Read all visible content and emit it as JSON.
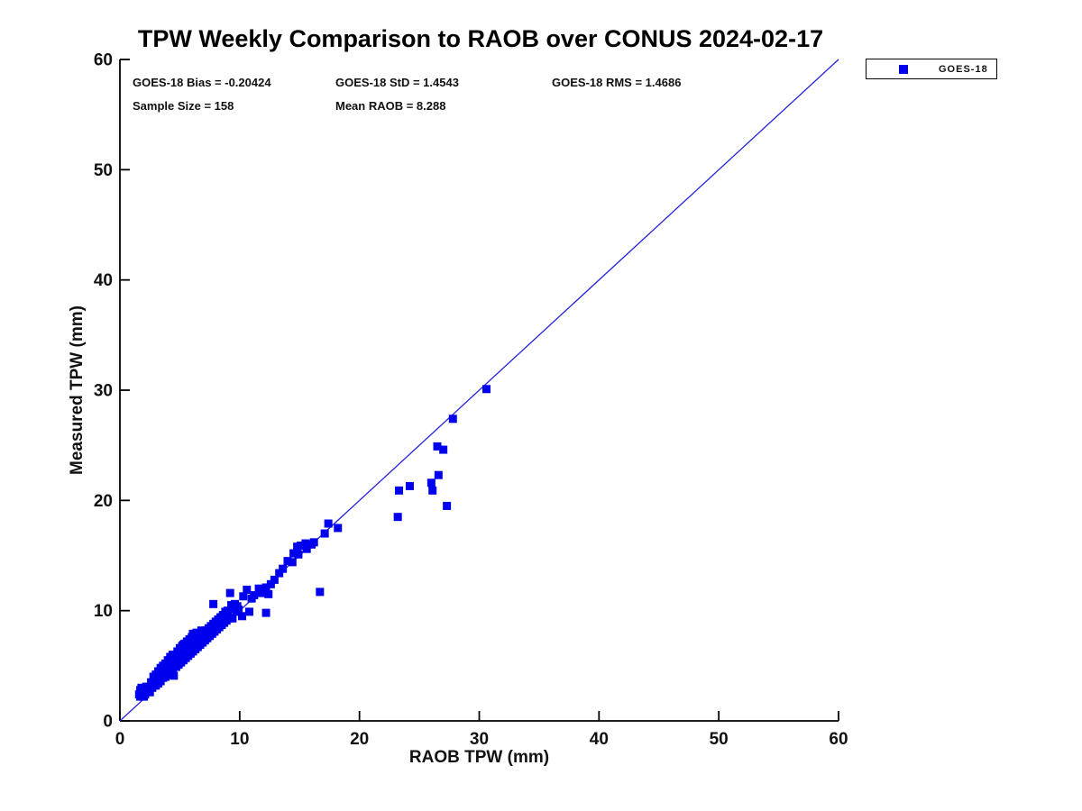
{
  "title": "TPW Weekly Comparison to RAOB over CONUS 2024-02-17",
  "stats": {
    "bias": "GOES-18 Bias = -0.20424",
    "std": "GOES-18 StD = 1.4543",
    "rms": "GOES-18 RMS = 1.4686",
    "sample_size": "Sample Size = 158",
    "mean_raob": "Mean RAOB = 8.288"
  },
  "legend": {
    "position": "top-right-outside",
    "entries": [
      {
        "label": "GOES-18",
        "marker": "square",
        "color": "#0000ee"
      }
    ]
  },
  "colors": {
    "marker": "#0000ee",
    "reference_line": "#2222dd",
    "axis": "#000000",
    "background": "#ffffff"
  },
  "chart_data": {
    "type": "scatter",
    "title": "TPW Weekly Comparison to RAOB over CONUS 2024-02-17",
    "xlabel": "RAOB TPW (mm)",
    "ylabel": "Measured TPW (mm)",
    "xlim": [
      0,
      60
    ],
    "ylim": [
      0,
      60
    ],
    "x_ticks": [
      0,
      10,
      20,
      30,
      40,
      50,
      60
    ],
    "y_ticks": [
      0,
      10,
      20,
      30,
      40,
      50,
      60
    ],
    "grid": false,
    "legend_position": "top-right-outside",
    "reference_line": {
      "name": "1:1 line",
      "from": [
        0,
        0
      ],
      "to": [
        60,
        60
      ]
    },
    "annotations": [
      "GOES-18 Bias = -0.20424",
      "GOES-18 StD = 1.4543",
      "GOES-18 RMS = 1.4686",
      "Sample Size = 158",
      "Mean RAOB = 8.288"
    ],
    "series": [
      {
        "name": "GOES-18",
        "marker": "square",
        "color": "#0000ee",
        "sample_size": 158,
        "points": [
          [
            1.6,
            2.4
          ],
          [
            1.7,
            2.2
          ],
          [
            1.7,
            2.8
          ],
          [
            1.8,
            2.6
          ],
          [
            1.8,
            3.0
          ],
          [
            1.9,
            2.5
          ],
          [
            2.0,
            2.2
          ],
          [
            2.0,
            2.8
          ],
          [
            2.1,
            2.4
          ],
          [
            2.2,
            3.1
          ],
          [
            2.3,
            2.7
          ],
          [
            2.4,
            3.0
          ],
          [
            2.5,
            2.6
          ],
          [
            2.6,
            3.2
          ],
          [
            2.6,
            3.5
          ],
          [
            2.7,
            3.0
          ],
          [
            2.8,
            3.3
          ],
          [
            2.8,
            4.0
          ],
          [
            2.9,
            3.6
          ],
          [
            3.0,
            3.2
          ],
          [
            3.0,
            4.2
          ],
          [
            3.1,
            3.8
          ],
          [
            3.2,
            3.4
          ],
          [
            3.2,
            4.5
          ],
          [
            3.3,
            4.0
          ],
          [
            3.4,
            3.6
          ],
          [
            3.4,
            4.8
          ],
          [
            3.5,
            4.2
          ],
          [
            3.6,
            3.9
          ],
          [
            3.6,
            5.0
          ],
          [
            3.7,
            4.4
          ],
          [
            3.8,
            4.0
          ],
          [
            3.8,
            5.2
          ],
          [
            3.9,
            4.6
          ],
          [
            4.0,
            4.2
          ],
          [
            4.0,
            5.5
          ],
          [
            4.1,
            4.8
          ],
          [
            4.2,
            4.4
          ],
          [
            4.2,
            5.8
          ],
          [
            4.3,
            5.0
          ],
          [
            4.4,
            4.6
          ],
          [
            4.4,
            6.0
          ],
          [
            4.5,
            4.1
          ],
          [
            4.5,
            5.2
          ],
          [
            4.6,
            5.4
          ],
          [
            4.7,
            4.9
          ],
          [
            4.8,
            5.6
          ],
          [
            4.8,
            6.3
          ],
          [
            4.9,
            5.1
          ],
          [
            4.9,
            6.2
          ],
          [
            5.0,
            5.8
          ],
          [
            5.0,
            6.6
          ],
          [
            5.1,
            5.3
          ],
          [
            5.2,
            6.0
          ],
          [
            5.2,
            6.8
          ],
          [
            5.3,
            5.5
          ],
          [
            5.3,
            6.9
          ],
          [
            5.4,
            6.2
          ],
          [
            5.4,
            7.0
          ],
          [
            5.5,
            5.7
          ],
          [
            5.6,
            6.4
          ],
          [
            5.6,
            7.2
          ],
          [
            5.7,
            5.9
          ],
          [
            5.7,
            6.9
          ],
          [
            5.8,
            6.6
          ],
          [
            5.8,
            7.4
          ],
          [
            5.9,
            6.1
          ],
          [
            5.9,
            7.0
          ],
          [
            6.0,
            6.8
          ],
          [
            6.0,
            7.6
          ],
          [
            6.1,
            6.3
          ],
          [
            6.1,
            7.9
          ],
          [
            6.2,
            7.0
          ],
          [
            6.2,
            7.8
          ],
          [
            6.3,
            6.5
          ],
          [
            6.4,
            7.2
          ],
          [
            6.4,
            8.0
          ],
          [
            6.5,
            6.7
          ],
          [
            6.5,
            7.4
          ],
          [
            6.6,
            7.6
          ],
          [
            6.7,
            6.9
          ],
          [
            6.8,
            7.8
          ],
          [
            6.8,
            8.2
          ],
          [
            6.9,
            7.1
          ],
          [
            7.0,
            7.4
          ],
          [
            7.0,
            8.0
          ],
          [
            7.1,
            7.3
          ],
          [
            7.2,
            8.2
          ],
          [
            7.3,
            7.5
          ],
          [
            7.4,
            8.4
          ],
          [
            7.5,
            7.7
          ],
          [
            7.6,
            8.0
          ],
          [
            7.6,
            8.6
          ],
          [
            7.7,
            7.9
          ],
          [
            7.8,
            8.8
          ],
          [
            7.8,
            10.6
          ],
          [
            7.9,
            8.1
          ],
          [
            8.0,
            9.0
          ],
          [
            8.1,
            8.3
          ],
          [
            8.2,
            8.6
          ],
          [
            8.2,
            9.2
          ],
          [
            8.3,
            8.5
          ],
          [
            8.4,
            9.4
          ],
          [
            8.5,
            8.7
          ],
          [
            8.6,
            9.6
          ],
          [
            8.7,
            8.9
          ],
          [
            8.8,
            9.9
          ],
          [
            8.9,
            9.1
          ],
          [
            9.0,
            10.0
          ],
          [
            9.1,
            9.3
          ],
          [
            9.2,
            11.6
          ],
          [
            9.3,
            10.5
          ],
          [
            9.4,
            9.3
          ],
          [
            9.5,
            10.2
          ],
          [
            9.6,
            10.6
          ],
          [
            9.7,
            9.9
          ],
          [
            9.8,
            10.4
          ],
          [
            9.9,
            10.1
          ],
          [
            10.2,
            9.5
          ],
          [
            10.3,
            11.3
          ],
          [
            10.6,
            11.9
          ],
          [
            10.8,
            9.9
          ],
          [
            11.0,
            11.1
          ],
          [
            11.2,
            11.4
          ],
          [
            11.6,
            12.0
          ],
          [
            11.8,
            11.6
          ],
          [
            12.2,
            12.1
          ],
          [
            12.2,
            9.8
          ],
          [
            12.4,
            11.5
          ],
          [
            12.6,
            12.4
          ],
          [
            12.9,
            12.8
          ],
          [
            13.3,
            13.4
          ],
          [
            13.6,
            13.8
          ],
          [
            14.0,
            14.5
          ],
          [
            14.4,
            14.4
          ],
          [
            14.5,
            15.2
          ],
          [
            14.8,
            15.8
          ],
          [
            14.9,
            15.1
          ],
          [
            15.1,
            15.9
          ],
          [
            15.5,
            16.1
          ],
          [
            15.6,
            15.6
          ],
          [
            16.0,
            16.0
          ],
          [
            16.2,
            16.2
          ],
          [
            16.7,
            11.7
          ],
          [
            17.1,
            17.0
          ],
          [
            17.4,
            17.9
          ],
          [
            18.2,
            17.5
          ],
          [
            23.2,
            18.5
          ],
          [
            23.3,
            20.9
          ],
          [
            24.2,
            21.3
          ],
          [
            26.0,
            21.6
          ],
          [
            26.1,
            20.9
          ],
          [
            26.5,
            24.9
          ],
          [
            26.6,
            22.3
          ],
          [
            27.0,
            24.6
          ],
          [
            27.3,
            19.5
          ],
          [
            27.8,
            27.4
          ],
          [
            30.6,
            30.1
          ]
        ]
      }
    ]
  }
}
